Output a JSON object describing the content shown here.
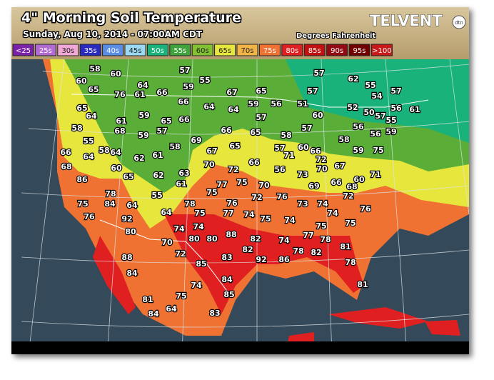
{
  "header": {
    "title": "4\" Morning Soil Temperature",
    "subtitle": "Sunday, Aug 10, 2014 - 07:00AM CDT",
    "units": "Degrees Fahrenheit",
    "brand": "TELVENT",
    "brand_badge": "dtn"
  },
  "legend": [
    {
      "label": "<25",
      "color": "#7a22a8"
    },
    {
      "label": "25s",
      "color": "#b06ad0"
    },
    {
      "label": "30s",
      "color": "#f2a8d6"
    },
    {
      "label": "35s",
      "color": "#2a2ac0"
    },
    {
      "label": "40s",
      "color": "#5a8ee6"
    },
    {
      "label": "45s",
      "color": "#9ad8f4"
    },
    {
      "label": "50s",
      "color": "#18b27a"
    },
    {
      "label": "55s",
      "color": "#3fa23c"
    },
    {
      "label": "60s",
      "color": "#82c232"
    },
    {
      "label": "65s",
      "color": "#e6e63c"
    },
    {
      "label": "70s",
      "color": "#f2b444"
    },
    {
      "label": "75s",
      "color": "#f07232"
    },
    {
      "label": "80s",
      "color": "#e02020"
    },
    {
      "label": "85s",
      "color": "#c01010"
    },
    {
      "label": "90s",
      "color": "#920a12"
    },
    {
      "label": "95s",
      "color": "#700000"
    },
    {
      "label": ">100",
      "color": "#c81818"
    }
  ],
  "stations": [
    58,
    60,
    57,
    55,
    57,
    62,
    60,
    65,
    76,
    64,
    59,
    55,
    61,
    66,
    67,
    65,
    57,
    54,
    57,
    65,
    66,
    59,
    56,
    51,
    52,
    50,
    56,
    61,
    64,
    59,
    65,
    66,
    64,
    64,
    57,
    60,
    57,
    58,
    61,
    68,
    57,
    66,
    65,
    58,
    57,
    56,
    55,
    59,
    55,
    59,
    69,
    58,
    56,
    66,
    58,
    64,
    58,
    67,
    65,
    57,
    71,
    60,
    66,
    59,
    75,
    64,
    62,
    61,
    72,
    66,
    68,
    60,
    70,
    72,
    56,
    73,
    70,
    67,
    71,
    65,
    62,
    63,
    60,
    86,
    61,
    77,
    75,
    70,
    69,
    66,
    68,
    78,
    55,
    75,
    72,
    76,
    72,
    75,
    84,
    64,
    78,
    76,
    73,
    74,
    76,
    76,
    92,
    64,
    75,
    77,
    74,
    75,
    74,
    74,
    74,
    80,
    74,
    75,
    75,
    88,
    82,
    77,
    78,
    70,
    80,
    80,
    74,
    81,
    82,
    72,
    78,
    82,
    88,
    83,
    92,
    86,
    85,
    78,
    84,
    84,
    81,
    74,
    85,
    75,
    81,
    84,
    64,
    83
  ]
}
